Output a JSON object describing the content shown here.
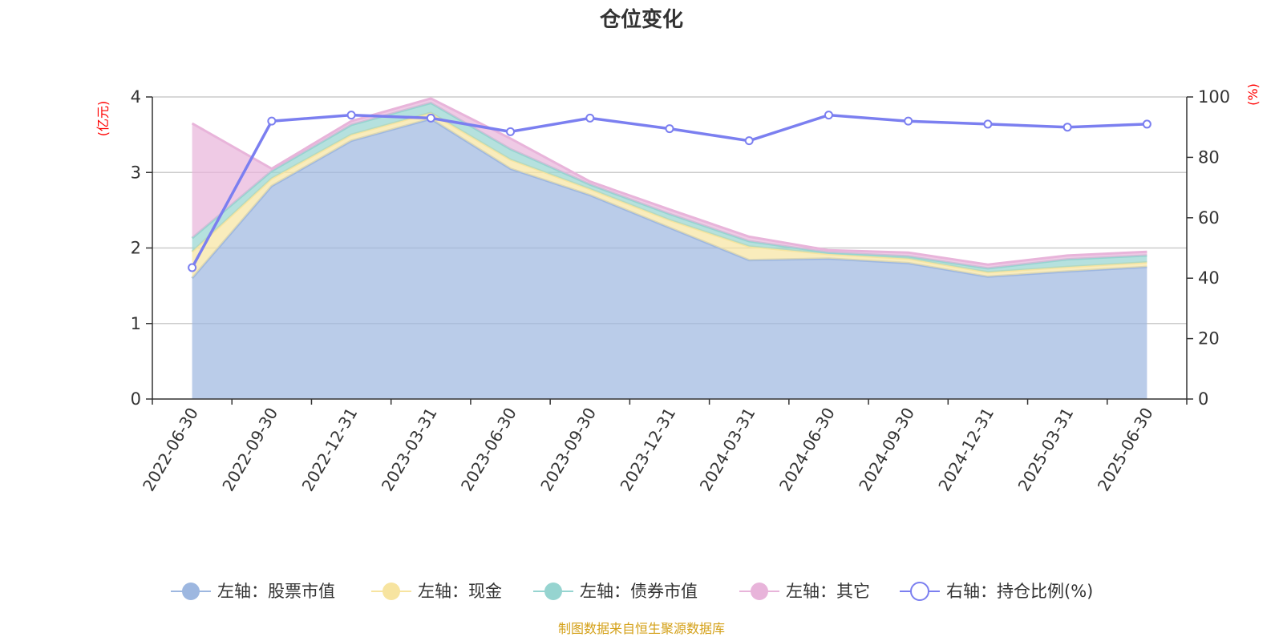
{
  "chart_data": {
    "type": "area",
    "title": "仓位变化",
    "source": "制图数据来自恒生聚源数据库",
    "left_axis": {
      "name": "(亿元)",
      "ylim": [
        0,
        4
      ],
      "ticks": [
        0,
        1,
        2,
        3,
        4
      ]
    },
    "right_axis": {
      "name": "(%)",
      "ylim": [
        0,
        100
      ],
      "ticks": [
        0,
        20,
        40,
        60,
        80,
        100
      ]
    },
    "categories": [
      "2022-06-30",
      "2022-09-30",
      "2022-12-31",
      "2023-03-31",
      "2023-06-30",
      "2023-09-30",
      "2023-12-31",
      "2024-03-31",
      "2024-06-30",
      "2024-09-30",
      "2024-12-31",
      "2025-03-31",
      "2025-06-30"
    ],
    "series": [
      {
        "name": "左轴：股票市值",
        "axis": "left",
        "kind": "stacked-area",
        "color": "#9db7e0",
        "values": [
          1.6,
          2.82,
          3.42,
          3.71,
          3.05,
          2.7,
          2.27,
          1.84,
          1.86,
          1.8,
          1.62,
          1.69,
          1.75
        ]
      },
      {
        "name": "左轴：现金",
        "axis": "left",
        "kind": "stacked-area",
        "color": "#f7e4a0",
        "values": [
          0.35,
          0.1,
          0.08,
          0.08,
          0.12,
          0.08,
          0.1,
          0.18,
          0.06,
          0.06,
          0.06,
          0.06,
          0.06
        ]
      },
      {
        "name": "左轴：债券市值",
        "axis": "left",
        "kind": "stacked-area",
        "color": "#96d4d0",
        "values": [
          0.18,
          0.1,
          0.13,
          0.13,
          0.14,
          0.06,
          0.08,
          0.07,
          0.02,
          0.03,
          0.05,
          0.1,
          0.09
        ]
      },
      {
        "name": "左轴：其它",
        "axis": "left",
        "kind": "stacked-area",
        "color": "#e8b4da",
        "values": [
          1.52,
          0.03,
          0.05,
          0.06,
          0.14,
          0.04,
          0.06,
          0.06,
          0.03,
          0.05,
          0.05,
          0.05,
          0.05
        ]
      },
      {
        "name": "右轴：持仓比例(%)",
        "axis": "right",
        "kind": "line",
        "color": "#7b7ff0",
        "values": [
          43.5,
          92,
          94,
          93,
          88.5,
          93,
          89.5,
          85.5,
          94,
          92,
          91,
          90,
          91
        ]
      }
    ],
    "grid": true,
    "legend_position": "bottom"
  }
}
